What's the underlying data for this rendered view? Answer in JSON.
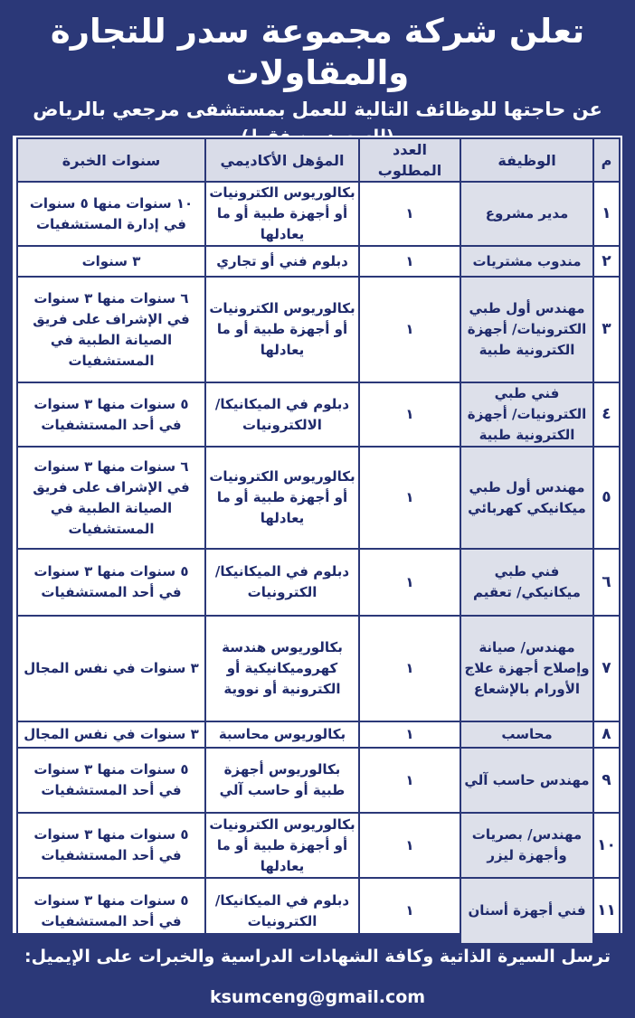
{
  "header": {
    "title": "تعلن شركة مجموعة سدر للتجارة والمقاولات",
    "subtitle": "عن حاجتها للوظائف التالية للعمل بمستشفى مرجعي بالرياض",
    "note": "(للسعوديين فقط)"
  },
  "table": {
    "columns": [
      "م",
      "الوظيفة",
      "العدد المطلوب",
      "المؤهل الأكاديمي",
      "سنوات الخبرة"
    ],
    "rows": [
      {
        "m": "١",
        "job": "مدير مشروع",
        "count": "١",
        "qualification": "بكالوريوس الكترونيات أو أجهزة طبية أو ما يعادلها",
        "experience": "١٠ سنوات منها ٥ سنوات في إدارة المستشفيات"
      },
      {
        "m": "٢",
        "job": "مندوب مشتريات",
        "count": "١",
        "qualification": "دبلوم فني أو تجاري",
        "experience": "٣ سنوات"
      },
      {
        "m": "٣",
        "job": "مهندس أول طبي الكترونيات/ أجهزة الكترونية طبية",
        "count": "١",
        "qualification": "بكالوريوس الكترونيات أو أجهزة طبية أو ما يعادلها",
        "experience": "٦ سنوات منها ٣ سنوات في الإشراف على فريق الصيانة الطبية في المستشفيات"
      },
      {
        "m": "٤",
        "job": "فني طبي الكترونيات/ أجهزة الكترونية طبية",
        "count": "١",
        "qualification": "دبلوم في الميكانيكا/ الالكترونيات",
        "experience": "٥ سنوات منها ٣ سنوات في أحد المستشفيات"
      },
      {
        "m": "٥",
        "job": "مهندس أول طبي ميكانيكي كهربائي",
        "count": "١",
        "qualification": "بكالوريوس الكترونيات أو أجهزة طبية أو ما يعادلها",
        "experience": "٦ سنوات منها ٣ سنوات في الإشراف على فريق الصيانة الطبية في المستشفيات"
      },
      {
        "m": "٦",
        "job": "فني طبي ميكانيكي/ تعقيم",
        "count": "١",
        "qualification": "دبلوم في الميكانيكا/ الكترونيات",
        "experience": "٥ سنوات منها ٣ سنوات في أحد المستشفيات"
      },
      {
        "m": "٧",
        "job": "مهندس/ صيانة وإصلاح أجهزة علاج الأورام بالإشعاع",
        "count": "١",
        "qualification": "بكالوريوس هندسة كهروميكانيكية أو الكترونية أو نووية",
        "experience": "٣ سنوات في نفس المجال"
      },
      {
        "m": "٨",
        "job": "محاسب",
        "count": "١",
        "qualification": "بكالوريوس محاسبة",
        "experience": "٣ سنوات في نفس المجال"
      },
      {
        "m": "٩",
        "job": "مهندس حاسب آلي",
        "count": "١",
        "qualification": "بكالوريوس أجهزة طبية أو حاسب آلي",
        "experience": "٥ سنوات منها ٣ سنوات في أحد المستشفيات"
      },
      {
        "m": "١٠",
        "job": "مهندس/ بصريات وأجهزة ليزر",
        "count": "١",
        "qualification": "بكالوريوس الكترونيات أو أجهزة طبية أو ما يعادلها",
        "experience": "٥ سنوات منها ٣ سنوات في أحد المستشفيات"
      },
      {
        "m": "١١",
        "job": "فني أجهزة أسنان",
        "count": "١",
        "qualification": "دبلوم في الميكانيكا/ الكترونيات",
        "experience": "٥ سنوات منها ٣ سنوات في أحد المستشفيات"
      }
    ]
  },
  "footer": {
    "text": "ترسل السيرة الذاتية وكافة الشهادات الدراسية والخبرات على الإيميل:",
    "email": "ksumceng@gmail.com"
  }
}
